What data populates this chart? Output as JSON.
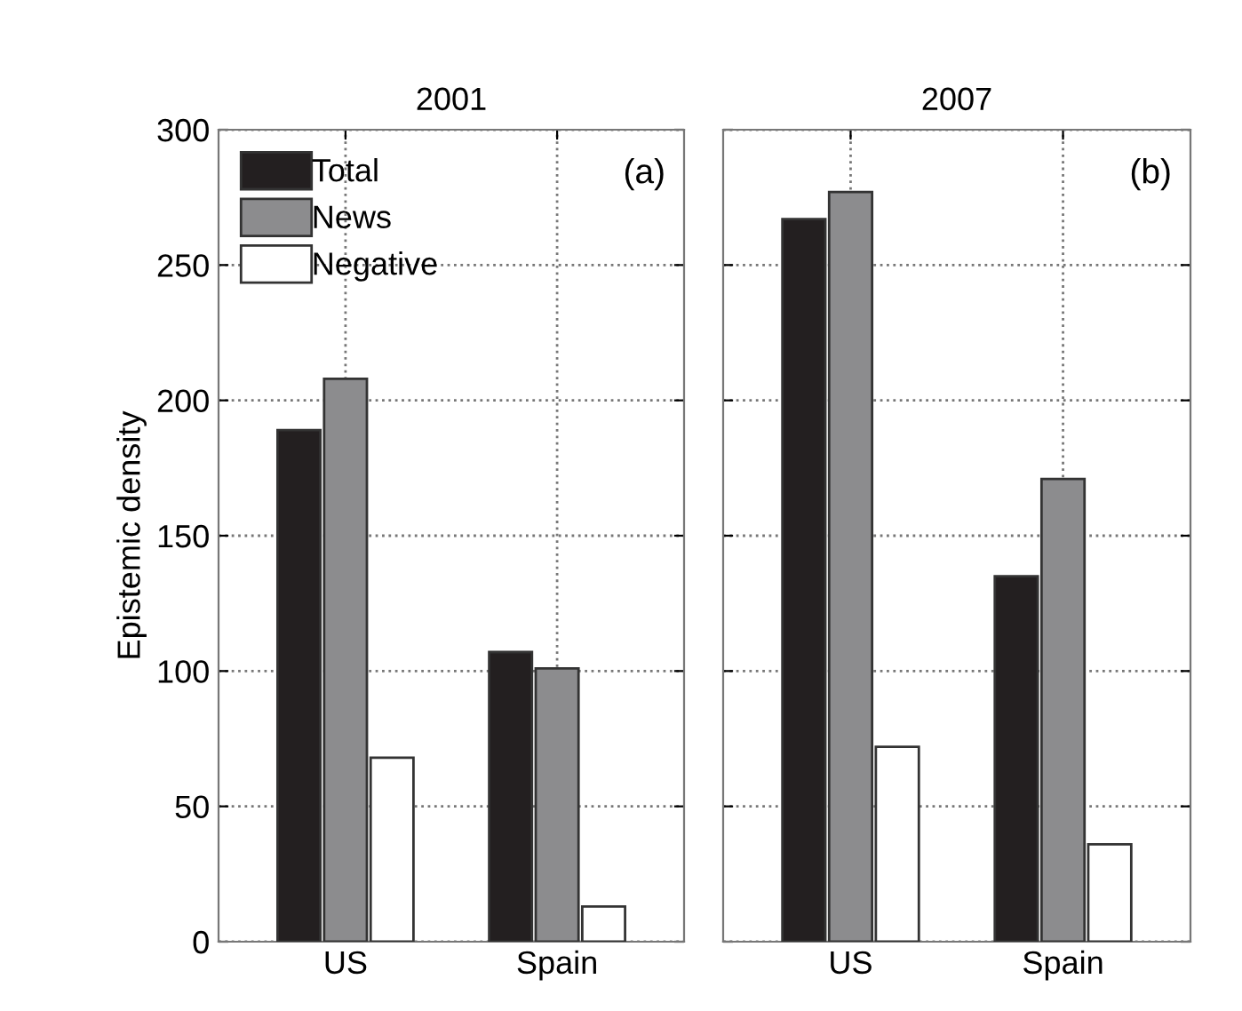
{
  "chart_data": [
    {
      "type": "bar",
      "title": "2001",
      "ylabel": "Epistemic density",
      "categories": [
        "US",
        "Spain"
      ],
      "annotations": [
        "(a)"
      ],
      "series": [
        {
          "name": "Total",
          "color": "#231f20",
          "values": [
            189,
            107
          ]
        },
        {
          "name": "News",
          "color": "#8c8c8e",
          "values": [
            208,
            101
          ]
        },
        {
          "name": "Negative",
          "color": "#ffffff",
          "values": [
            68,
            13
          ]
        }
      ],
      "ylim": [
        0,
        300
      ],
      "yticks": [
        0,
        50,
        100,
        150,
        200,
        250,
        300
      ],
      "grid": true,
      "legend": "top left"
    },
    {
      "type": "bar",
      "title": "2007",
      "categories": [
        "US",
        "Spain"
      ],
      "annotations": [
        "(b)"
      ],
      "series": [
        {
          "color": "#231f20",
          "values": [
            267,
            135
          ]
        },
        {
          "color": "#8c8c8e",
          "values": [
            277,
            171
          ]
        },
        {
          "color": "#ffffff",
          "values": [
            72,
            36
          ]
        }
      ],
      "ylim": [
        0,
        300
      ],
      "yticks": [
        0,
        50,
        100,
        150,
        200,
        250,
        300
      ],
      "grid": true,
      "tick_labels": "x"
    }
  ]
}
